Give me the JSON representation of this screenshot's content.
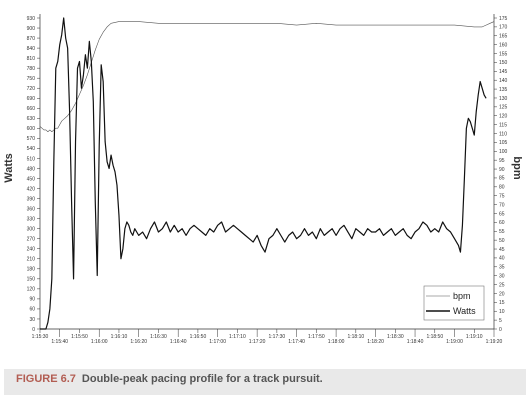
{
  "chart_data": {
    "type": "line",
    "title": "",
    "caption": {
      "figure_label": "FIGURE 6.7",
      "text": "Double-peak pacing profile for a track pursuit."
    },
    "ylabel_left": "Watts",
    "ylabel_right": "bpm",
    "ylim_left": [
      0,
      930
    ],
    "ylim_right": [
      0,
      175
    ],
    "y_ticks_left": [
      "930",
      "900",
      "870",
      "840",
      "810",
      "780",
      "750",
      "720",
      "690",
      "660",
      "630",
      "600",
      "570",
      "540",
      "510",
      "480",
      "450",
      "420",
      "390",
      "360",
      "330",
      "300",
      "270",
      "240",
      "210",
      "180",
      "150",
      "120",
      "90",
      "60",
      "30",
      "0"
    ],
    "y_ticks_right": [
      "175",
      "170",
      "165",
      "160",
      "155",
      "150",
      "145",
      "140",
      "135",
      "130",
      "125",
      "120",
      "115",
      "110",
      "105",
      "100",
      "95",
      "90",
      "85",
      "80",
      "75",
      "70",
      "65",
      "60",
      "55",
      "50",
      "45",
      "40",
      "35",
      "30",
      "25",
      "20",
      "15",
      "10",
      "5",
      "0"
    ],
    "x_tick_labels": [
      "1:15:30",
      "1:15:40",
      "1:15:50",
      "1:16:00",
      "1:16:10",
      "1:16:20",
      "1:16:30",
      "1:16:40",
      "1:16:50",
      "1:17:00",
      "1:17:10",
      "1:17:20",
      "1:17:30",
      "1:17:40",
      "1:17:50",
      "1:18:00",
      "1:18:10",
      "1:18:20",
      "1:18:30",
      "1:18:40",
      "1:18:50",
      "1:19:00",
      "1:19:10",
      "1:19:20"
    ],
    "x_start_seconds": 0,
    "x_end_seconds": 230,
    "legend": {
      "position": "bottom-right",
      "entries": [
        {
          "name": "bpm",
          "style": "thin"
        },
        {
          "name": "Watts",
          "style": "thick"
        }
      ]
    },
    "grid": false,
    "series": [
      {
        "name": "bpm",
        "axis": "right",
        "points": [
          [
            0,
            114
          ],
          [
            1,
            113
          ],
          [
            2,
            112
          ],
          [
            3,
            112
          ],
          [
            4,
            111
          ],
          [
            5,
            112
          ],
          [
            6,
            111
          ],
          [
            7,
            112
          ],
          [
            8,
            113
          ],
          [
            9,
            113
          ],
          [
            10,
            115
          ],
          [
            11,
            117
          ],
          [
            12,
            118
          ],
          [
            14,
            120
          ],
          [
            16,
            123
          ],
          [
            18,
            127
          ],
          [
            20,
            132
          ],
          [
            22,
            137
          ],
          [
            24,
            143
          ],
          [
            26,
            150
          ],
          [
            28,
            157
          ],
          [
            30,
            163
          ],
          [
            32,
            167
          ],
          [
            34,
            170
          ],
          [
            36,
            172
          ],
          [
            40,
            173
          ],
          [
            50,
            173
          ],
          [
            60,
            172
          ],
          [
            70,
            172
          ],
          [
            80,
            172
          ],
          [
            90,
            172
          ],
          [
            100,
            172
          ],
          [
            110,
            172
          ],
          [
            120,
            172
          ],
          [
            130,
            171
          ],
          [
            140,
            172
          ],
          [
            150,
            171
          ],
          [
            160,
            171
          ],
          [
            170,
            171
          ],
          [
            180,
            171
          ],
          [
            190,
            171
          ],
          [
            200,
            171
          ],
          [
            210,
            171
          ],
          [
            220,
            170
          ],
          [
            224,
            170
          ],
          [
            226,
            171
          ],
          [
            228,
            172
          ],
          [
            230,
            173
          ]
        ]
      },
      {
        "name": "Watts",
        "axis": "left",
        "points": [
          [
            0,
            0
          ],
          [
            1,
            0
          ],
          [
            2,
            0
          ],
          [
            3,
            0
          ],
          [
            4,
            20
          ],
          [
            5,
            60
          ],
          [
            6,
            150
          ],
          [
            7,
            500
          ],
          [
            8,
            780
          ],
          [
            9,
            800
          ],
          [
            10,
            850
          ],
          [
            11,
            880
          ],
          [
            12,
            930
          ],
          [
            13,
            870
          ],
          [
            14,
            840
          ],
          [
            15,
            650
          ],
          [
            16,
            380
          ],
          [
            17,
            150
          ],
          [
            18,
            560
          ],
          [
            19,
            780
          ],
          [
            20,
            800
          ],
          [
            21,
            720
          ],
          [
            22,
            760
          ],
          [
            23,
            820
          ],
          [
            24,
            780
          ],
          [
            25,
            860
          ],
          [
            26,
            800
          ],
          [
            27,
            680
          ],
          [
            28,
            380
          ],
          [
            29,
            160
          ],
          [
            30,
            550
          ],
          [
            31,
            790
          ],
          [
            32,
            740
          ],
          [
            33,
            560
          ],
          [
            34,
            500
          ],
          [
            35,
            480
          ],
          [
            36,
            520
          ],
          [
            37,
            490
          ],
          [
            38,
            470
          ],
          [
            39,
            430
          ],
          [
            40,
            340
          ],
          [
            41,
            210
          ],
          [
            42,
            240
          ],
          [
            43,
            300
          ],
          [
            44,
            320
          ],
          [
            45,
            310
          ],
          [
            46,
            290
          ],
          [
            47,
            280
          ],
          [
            48,
            300
          ],
          [
            50,
            280
          ],
          [
            52,
            290
          ],
          [
            54,
            270
          ],
          [
            56,
            300
          ],
          [
            58,
            320
          ],
          [
            60,
            290
          ],
          [
            62,
            300
          ],
          [
            64,
            320
          ],
          [
            66,
            290
          ],
          [
            68,
            310
          ],
          [
            70,
            290
          ],
          [
            72,
            300
          ],
          [
            74,
            280
          ],
          [
            76,
            300
          ],
          [
            78,
            310
          ],
          [
            80,
            300
          ],
          [
            82,
            290
          ],
          [
            84,
            280
          ],
          [
            86,
            300
          ],
          [
            88,
            290
          ],
          [
            90,
            310
          ],
          [
            92,
            320
          ],
          [
            94,
            290
          ],
          [
            96,
            300
          ],
          [
            98,
            310
          ],
          [
            100,
            300
          ],
          [
            102,
            290
          ],
          [
            104,
            280
          ],
          [
            106,
            270
          ],
          [
            108,
            260
          ],
          [
            110,
            280
          ],
          [
            112,
            250
          ],
          [
            114,
            230
          ],
          [
            116,
            270
          ],
          [
            118,
            280
          ],
          [
            120,
            300
          ],
          [
            122,
            280
          ],
          [
            124,
            260
          ],
          [
            126,
            280
          ],
          [
            128,
            290
          ],
          [
            130,
            270
          ],
          [
            132,
            280
          ],
          [
            134,
            300
          ],
          [
            136,
            280
          ],
          [
            138,
            290
          ],
          [
            140,
            270
          ],
          [
            142,
            300
          ],
          [
            144,
            280
          ],
          [
            146,
            290
          ],
          [
            148,
            300
          ],
          [
            150,
            280
          ],
          [
            152,
            300
          ],
          [
            154,
            310
          ],
          [
            156,
            290
          ],
          [
            158,
            270
          ],
          [
            160,
            300
          ],
          [
            162,
            290
          ],
          [
            164,
            280
          ],
          [
            166,
            300
          ],
          [
            168,
            290
          ],
          [
            170,
            290
          ],
          [
            172,
            300
          ],
          [
            174,
            280
          ],
          [
            176,
            290
          ],
          [
            178,
            300
          ],
          [
            180,
            280
          ],
          [
            182,
            290
          ],
          [
            184,
            300
          ],
          [
            186,
            280
          ],
          [
            188,
            270
          ],
          [
            190,
            290
          ],
          [
            192,
            300
          ],
          [
            194,
            320
          ],
          [
            196,
            310
          ],
          [
            198,
            290
          ],
          [
            200,
            300
          ],
          [
            202,
            290
          ],
          [
            204,
            320
          ],
          [
            206,
            300
          ],
          [
            208,
            290
          ],
          [
            210,
            270
          ],
          [
            212,
            250
          ],
          [
            213,
            230
          ],
          [
            214,
            310
          ],
          [
            215,
            450
          ],
          [
            216,
            600
          ],
          [
            217,
            630
          ],
          [
            218,
            620
          ],
          [
            219,
            600
          ],
          [
            220,
            580
          ],
          [
            221,
            650
          ],
          [
            222,
            700
          ],
          [
            223,
            740
          ],
          [
            224,
            720
          ],
          [
            225,
            700
          ],
          [
            226,
            690
          ]
        ]
      }
    ]
  }
}
